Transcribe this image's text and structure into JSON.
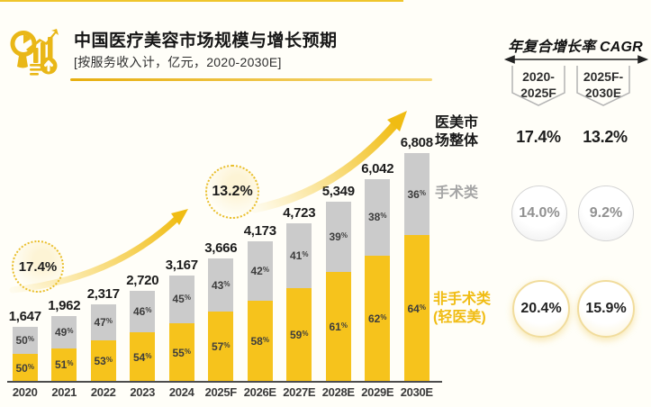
{
  "header": {
    "title": "中国医疗美容市场规模与增长预期",
    "subtitle": "[按服务收入计，亿元，2020-2030E]",
    "logo_icon": "chart-magnifier-icon"
  },
  "chart_data": {
    "type": "bar",
    "stacked": true,
    "title": "中国医疗美容市场规模与增长预期",
    "unit": "亿元",
    "categories": [
      "2020",
      "2021",
      "2022",
      "2023",
      "2024",
      "2025F",
      "2026E",
      "2027E",
      "2028E",
      "2029E",
      "2030E"
    ],
    "totals": [
      1647,
      1962,
      2317,
      2720,
      3167,
      3666,
      4173,
      4723,
      5349,
      6042,
      6808
    ],
    "total_labels": [
      "1,647",
      "1,962",
      "2,317",
      "2,720",
      "3,167",
      "3,666",
      "4,173",
      "4,723",
      "5,349",
      "6,042",
      "6,808"
    ],
    "series": [
      {
        "name": "非手术类(轻医美)",
        "color": "#F6C31C",
        "share_pct": [
          50,
          51,
          53,
          54,
          55,
          57,
          58,
          59,
          61,
          62,
          64
        ],
        "share_labels": [
          "50%",
          "51%",
          "53%",
          "54%",
          "55%",
          "57%",
          "58%",
          "59%",
          "61%",
          "62%",
          "64%"
        ]
      },
      {
        "name": "手术类",
        "color": "#CBCBCB",
        "share_pct": [
          50,
          49,
          47,
          46,
          45,
          43,
          42,
          41,
          39,
          38,
          36
        ],
        "share_labels": [
          "50%",
          "49%",
          "47%",
          "46%",
          "45%",
          "43%",
          "42%",
          "41%",
          "39%",
          "38%",
          "36%"
        ]
      }
    ],
    "annotations": [
      {
        "text": "17.4%"
      },
      {
        "text": "13.2%"
      }
    ],
    "ylim": [
      0,
      7600
    ],
    "grid": false,
    "legend_position": "right"
  },
  "labels": {
    "total": "医美市\n场整体",
    "surgical": "手术类",
    "nonsurgical": "非手术类\n(轻医美)"
  },
  "cagr": {
    "title": "年复合增长率 CAGR",
    "periods": [
      "2020-\n2025F",
      "2025F-\n2030E"
    ],
    "overall": [
      "17.4%",
      "13.2%"
    ],
    "surgical": [
      "14.0%",
      "9.2%"
    ],
    "nonsurgical": [
      "20.4%",
      "15.9%"
    ]
  },
  "colors": {
    "accent_yellow": "#F6C31C",
    "bar_gray": "#CBCBCB",
    "background": "#FFFEF8",
    "divider": "#E7AE0E"
  }
}
